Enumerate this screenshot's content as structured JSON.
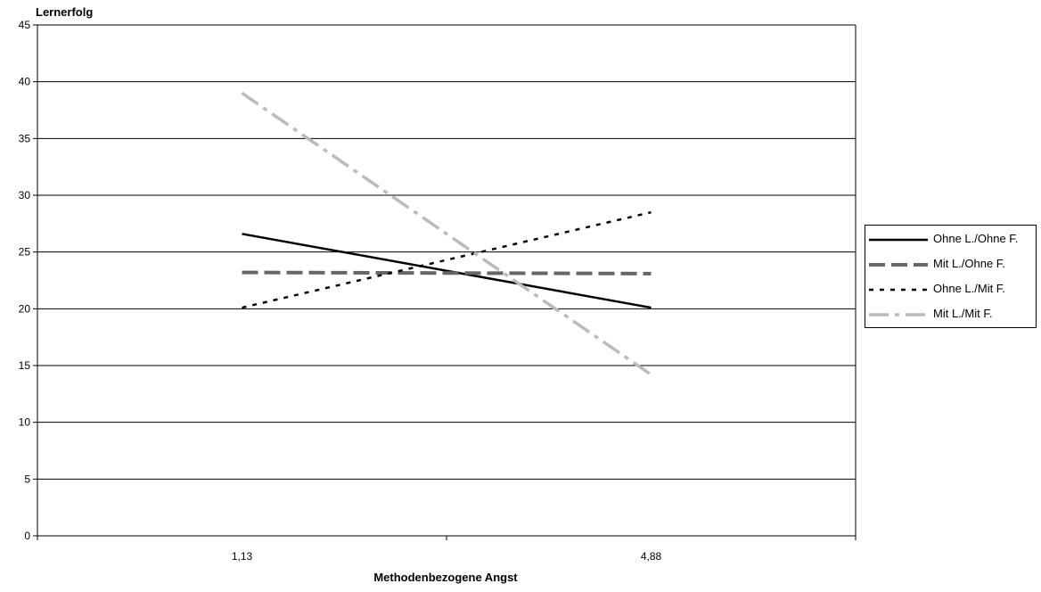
{
  "chart_data": {
    "type": "line",
    "title": "",
    "xlabel": "Methodenbezogene Angst",
    "ylabel": "Lernerfolg",
    "categories": [
      "1,13",
      "4,88"
    ],
    "ylim": [
      0,
      45
    ],
    "yticks": [
      0,
      5,
      10,
      15,
      20,
      25,
      30,
      35,
      40,
      45
    ],
    "grid": true,
    "legend_position": "right",
    "series": [
      {
        "name": "Ohne L./Ohne F.",
        "values": [
          26.6,
          20.1
        ],
        "color": "#000000",
        "style": "solid"
      },
      {
        "name": "Mit L./Ohne F.",
        "values": [
          23.2,
          23.1
        ],
        "color": "#666666",
        "style": "dashed"
      },
      {
        "name": "Ohne L./Mit F.",
        "values": [
          20.1,
          28.5
        ],
        "color": "#000000",
        "style": "dotted"
      },
      {
        "name": "Mit L./Mit F.",
        "values": [
          39.0,
          14.2
        ],
        "color": "#bbbbbb",
        "style": "dashdot"
      }
    ]
  }
}
